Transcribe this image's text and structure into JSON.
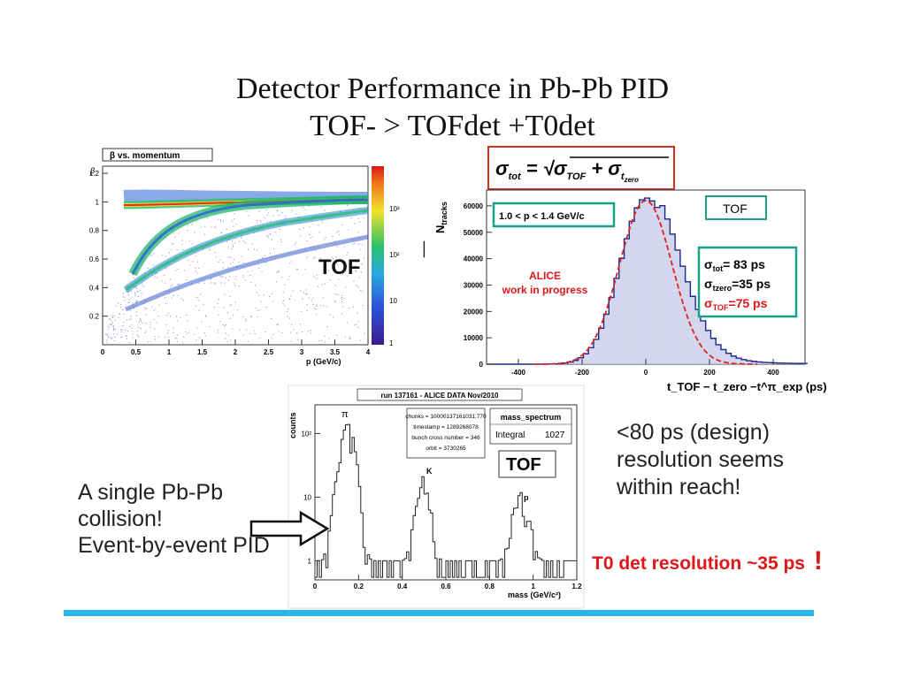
{
  "title": {
    "line1": "Detector Performance in Pb-Pb PID",
    "line2": "TOF- > TOFdet +T0det"
  },
  "beta_plot": {
    "title": "β vs. momentum",
    "ylabel": "β",
    "xlabel": "p (GeV/c)",
    "label": "TOF",
    "yticks": [
      "0.2",
      "0.4",
      "0.6",
      "0.8",
      "1",
      "1.2"
    ],
    "xticks": [
      "0",
      "0.5",
      "1",
      "1.5",
      "2",
      "2.5",
      "3",
      "3.5",
      "4"
    ],
    "zticks": [
      "1",
      "10",
      "10²",
      "10³"
    ]
  },
  "tof_hist": {
    "ylabel": "N",
    "ylabel_sub": "tracks",
    "formula": {
      "lhs": "σ",
      "lhs_sub": "tot",
      "t1": "σ",
      "t1_sub": "TOF",
      "t2": "σ",
      "t2_sub": "t",
      "t2_subsub": "zero"
    },
    "momentum_range": "1.0 < p < 1.4 GeV/c",
    "tag": "TOF",
    "alice_line1": "ALICE",
    "alice_line2": "work in progress",
    "res_tot": "= 83 ps",
    "res_tzero": "=35 ps",
    "res_tof": "=75 ps",
    "sub_tot": "tot",
    "sub_tzero": "tzero",
    "sub_tof": "TOF",
    "sigma": "σ",
    "yticks": [
      "0",
      "10000",
      "20000",
      "30000",
      "40000",
      "50000",
      "60000"
    ],
    "xticks": [
      "-400",
      "-200",
      "0",
      "200",
      "400"
    ],
    "xlabel": "t_TOF − t_zero −t^π_exp (ps)"
  },
  "mass_plot": {
    "title": "run 137161 - ALICE DATA Nov/2010",
    "ylabel": "counts",
    "xlabel": "mass (GeV/c²)",
    "info": [
      "chunks = 10000137161031.770",
      "timestamp = 1289268078",
      "bunch cross number = 346",
      "orbit = 3730265"
    ],
    "stat_name": "mass_spectrum",
    "stat_key": "Integral",
    "stat_value": "1027",
    "label": "TOF",
    "peak_pi": "π",
    "peak_k": "K",
    "peak_p": "p",
    "yticks": [
      "1",
      "10",
      "10²"
    ],
    "xticks": [
      "0",
      "0.2",
      "0.4",
      "0.6",
      "0.8",
      "1",
      "1.2"
    ]
  },
  "left_text": [
    "A single Pb-Pb",
    "collision!",
    "Event-by-event PID"
  ],
  "right_text": [
    "<80 ps (design)",
    "resolution seems",
    "within reach!"
  ],
  "note": {
    "text": "T0 det resolution ~35 ps",
    "mark": "!"
  },
  "colors": {
    "accent_bar": "#29b5e8",
    "red": "#e01515",
    "teal": "#1aa08a",
    "hist_blue": "#1a2a8a"
  }
}
